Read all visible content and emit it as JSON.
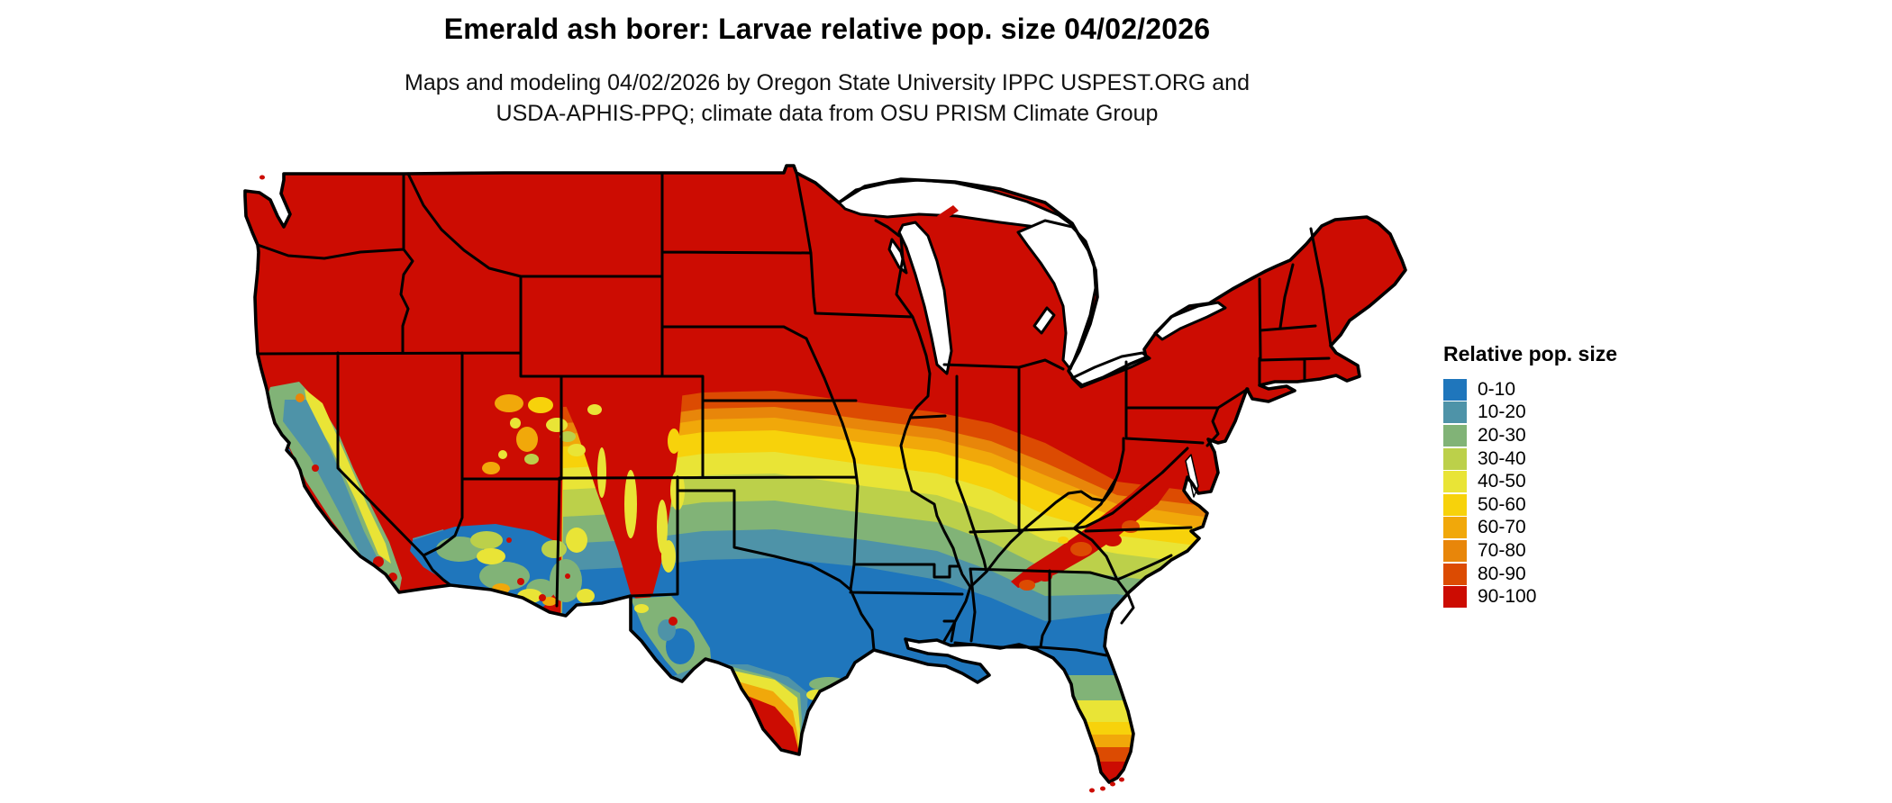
{
  "title": "Emerald ash borer: Larvae relative pop. size 04/02/2026",
  "subtitle_line1": "Maps and modeling 04/02/2026 by Oregon State University IPPC USPEST.ORG and",
  "subtitle_line2": "USDA-APHIS-PPQ; climate data from OSU PRISM Climate Group",
  "legend": {
    "title": "Relative pop. size",
    "items": [
      {
        "label": "0-10",
        "color": "#1f76bc"
      },
      {
        "label": "10-20",
        "color": "#4e93a8"
      },
      {
        "label": "20-30",
        "color": "#81b377"
      },
      {
        "label": "30-40",
        "color": "#bcd04a"
      },
      {
        "label": "40-50",
        "color": "#e9e436"
      },
      {
        "label": "50-60",
        "color": "#f7d20b"
      },
      {
        "label": "60-70",
        "color": "#f1a80a"
      },
      {
        "label": "70-80",
        "color": "#e8860a"
      },
      {
        "label": "80-90",
        "color": "#dc4b02"
      },
      {
        "label": "90-100",
        "color": "#cc0c02"
      }
    ]
  },
  "map_data": {
    "type": "choropleth_map",
    "area": "Contiguous United States",
    "variable": "Emerald ash borer larvae relative population size (0-100)",
    "date": "04/02/2026",
    "regions": [
      {
        "region": "Northern tier (WA, OR, ID, MT, WY, ND, SD, MN, WI, MI, IA, NE, IL, IN, OH, PA, NY, New England, KY, WV, VA)",
        "value": "90-100"
      },
      {
        "region": "Kansas / Missouri / southern Nebraska transition belt",
        "value": "50-90"
      },
      {
        "region": "Oklahoma / Arkansas / Tennessee / North Carolina belt",
        "value": "20-60"
      },
      {
        "region": "Central & east Texas, Louisiana, southern MS / AL / GA, SC coastal plain, north Florida",
        "value": "0-20"
      },
      {
        "region": "South Texas Rio Grande Valley tip",
        "value": "60-100 (increasing toward Brownsville)"
      },
      {
        "region": "Central & south Florida peninsula",
        "value": "20-100 (increasing toward Miami / Keys)"
      },
      {
        "region": "California Sierra Nevada, Central Valley & coast",
        "value": "0-50 mosaic within 90-100 surroundings"
      },
      {
        "region": "Southern Arizona / southern New Mexico deserts",
        "value": "0-50 mosaic with 60-100 hot spots"
      },
      {
        "region": "Southern Appalachians finger (SW VA / E TN / W NC / N GA)",
        "value": "80-100"
      },
      {
        "region": "Great Lakes, Chesapeake Bay",
        "value": "no data (water)"
      }
    ]
  }
}
